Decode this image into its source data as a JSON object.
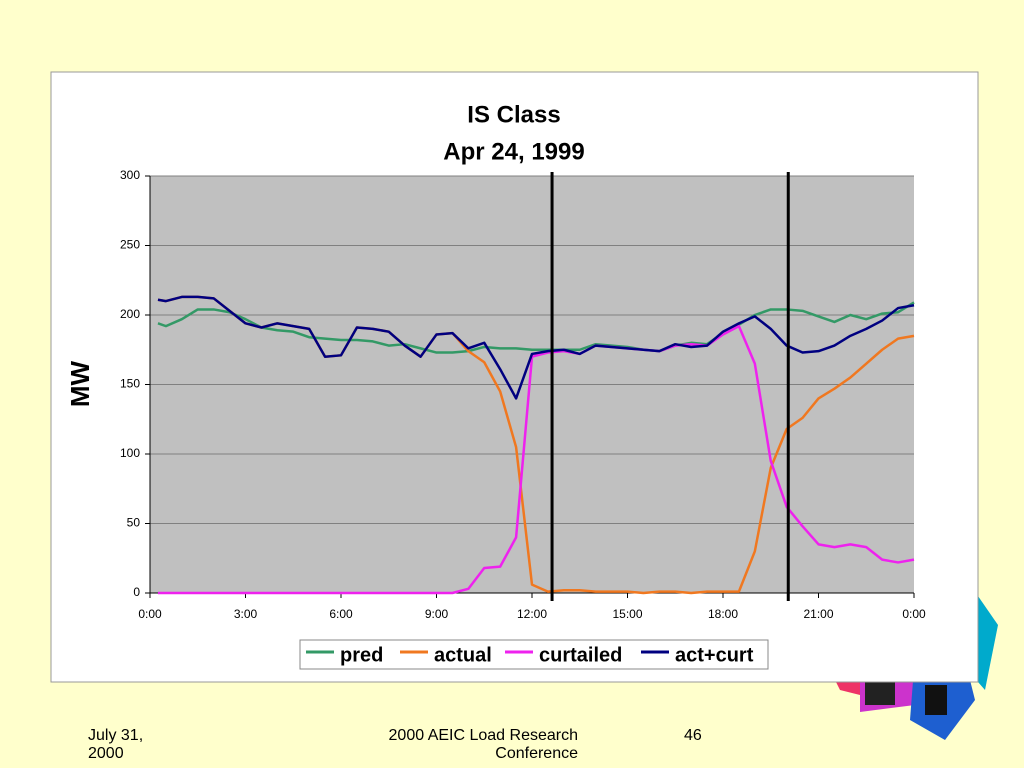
{
  "chart_data": {
    "type": "line",
    "title": "IS Class",
    "subtitle": "Apr 24, 1999",
    "y_label": "MW",
    "x": [
      0.25,
      0.5,
      1,
      1.5,
      2,
      2.5,
      3,
      3.5,
      4,
      4.5,
      5,
      5.5,
      6,
      6.5,
      7,
      7.5,
      8,
      8.5,
      9,
      9.5,
      10,
      10.5,
      11,
      11.5,
      12,
      12.5,
      13,
      13.5,
      14,
      14.5,
      15,
      15.5,
      16,
      16.5,
      17,
      17.5,
      18,
      18.5,
      19,
      19.5,
      20,
      20.5,
      21,
      21.5,
      22,
      22.5,
      23,
      23.5,
      24
    ],
    "series": [
      {
        "name": "pred",
        "color": "#339966",
        "values": [
          194,
          192,
          197,
          204,
          204,
          202,
          197,
          191,
          189,
          188,
          184,
          183,
          182,
          182,
          181,
          178,
          179,
          176,
          173,
          173,
          174,
          177,
          176,
          176,
          175,
          175,
          175,
          175,
          179,
          178,
          177,
          175,
          174,
          178,
          180,
          179,
          187,
          193,
          200,
          204,
          204,
          203,
          199,
          195,
          200,
          197,
          201,
          202,
          209
        ]
      },
      {
        "name": "actual",
        "color": "#f07820",
        "values": [
          211,
          210,
          213,
          213,
          212,
          203,
          194,
          191,
          194,
          192,
          190,
          170,
          171,
          191,
          190,
          188,
          178,
          170,
          186,
          187,
          174,
          166,
          145,
          105,
          6,
          1,
          2,
          2,
          1,
          1,
          1,
          0,
          1,
          1,
          0,
          1,
          1,
          1,
          30,
          90,
          118,
          126,
          140,
          147,
          155,
          165,
          175,
          183,
          185
        ]
      },
      {
        "name": "curtailed",
        "color": "#ee22ee",
        "values": [
          0,
          0,
          0,
          0,
          0,
          0,
          0,
          0,
          0,
          0,
          0,
          0,
          0,
          0,
          0,
          0,
          0,
          0,
          0,
          0,
          3,
          18,
          19,
          40,
          170,
          173,
          174,
          172,
          178,
          177,
          176,
          175,
          174,
          178,
          179,
          178,
          186,
          192,
          165,
          95,
          62,
          48,
          35,
          33,
          35,
          33,
          24,
          22,
          24
        ]
      },
      {
        "name": "act+curt",
        "color": "#000080",
        "values": [
          211,
          210,
          213,
          213,
          212,
          203,
          194,
          191,
          194,
          192,
          190,
          170,
          171,
          191,
          190,
          188,
          178,
          170,
          186,
          187,
          176,
          180,
          161,
          140,
          172,
          174,
          175,
          172,
          178,
          177,
          176,
          175,
          174,
          179,
          177,
          178,
          188,
          194,
          199,
          190,
          178,
          173,
          174,
          178,
          185,
          190,
          196,
          205,
          207
        ]
      }
    ],
    "xlim": [
      0,
      24
    ],
    "xticks": [
      {
        "value": 0,
        "label": "0:00"
      },
      {
        "value": 3,
        "label": "3:00"
      },
      {
        "value": 6,
        "label": "6:00"
      },
      {
        "value": 9,
        "label": "9:00"
      },
      {
        "value": 12,
        "label": "12:00"
      },
      {
        "value": 15,
        "label": "15:00"
      },
      {
        "value": 18,
        "label": "18:00"
      },
      {
        "value": 21,
        "label": "21:00"
      },
      {
        "value": 24,
        "label": "0:00"
      }
    ],
    "ylim": [
      0,
      300
    ],
    "yticks": [
      0,
      50,
      100,
      150,
      200,
      250,
      300
    ],
    "grid": true,
    "vlines": [
      12.63,
      20.05
    ],
    "legend": "bottom"
  },
  "footer": {
    "date": "July 31, 2000",
    "event": "2000 AEIC Load Research Conference",
    "page": "46"
  }
}
